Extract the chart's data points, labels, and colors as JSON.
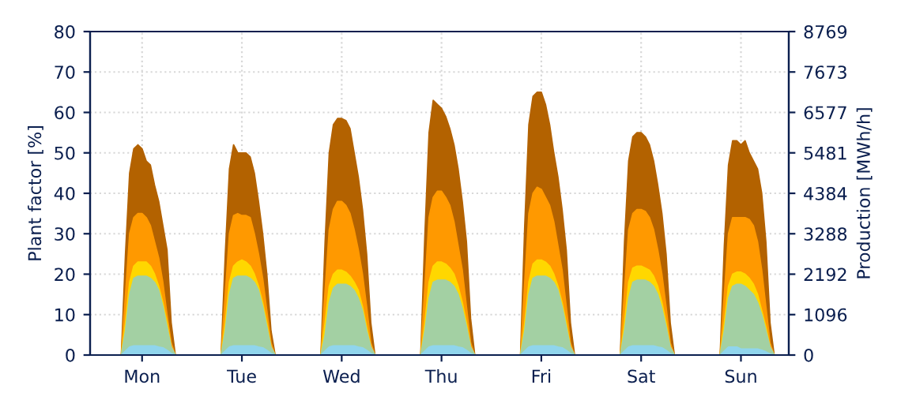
{
  "chart_data": {
    "type": "area",
    "ylabel": "Plant factor [%]",
    "y2label": "Production [MWh/h]",
    "categories": [
      null,
      null,
      null,
      null,
      null,
      null,
      null,
      null,
      null,
      null,
      null,
      null,
      "Mon",
      null,
      null,
      null,
      null,
      null,
      null,
      null,
      null,
      null,
      null,
      null,
      null,
      null,
      null,
      null,
      null,
      null,
      null,
      null,
      null,
      null,
      null,
      null,
      "Tue",
      null,
      null,
      null,
      null,
      null,
      null,
      null,
      null,
      null,
      null,
      null,
      null,
      null,
      null,
      null,
      null,
      null,
      null,
      null,
      null,
      null,
      null,
      null,
      "Wed",
      null,
      null,
      null,
      null,
      null,
      null,
      null,
      null,
      null,
      null,
      null,
      null,
      null,
      null,
      null,
      null,
      null,
      null,
      null,
      null,
      null,
      null,
      null,
      "Thu",
      null,
      null,
      null,
      null,
      null,
      null,
      null,
      null,
      null,
      null,
      null,
      null,
      null,
      null,
      null,
      null,
      null,
      null,
      null,
      null,
      null,
      null,
      null,
      "Fri",
      null,
      null,
      null,
      null,
      null,
      null,
      null,
      null,
      null,
      null,
      null,
      null,
      null,
      null,
      null,
      null,
      null,
      null,
      null,
      null,
      null,
      null,
      null,
      "Sat",
      null,
      null,
      null,
      null,
      null,
      null,
      null,
      null,
      null,
      null,
      null,
      null,
      null,
      null,
      null,
      null,
      null,
      null,
      null,
      null,
      null,
      null,
      null,
      "Sun",
      null,
      null,
      null,
      null,
      null,
      null,
      null,
      null,
      null,
      null,
      null
    ],
    "series": [
      {
        "color": "#b36200",
        "values": [
          0,
          0,
          0,
          0,
          0,
          0,
          0,
          0,
          25,
          45,
          51,
          52,
          51,
          48,
          47,
          42,
          38,
          32,
          26,
          8,
          0,
          0,
          0,
          0,
          0,
          0,
          0,
          0,
          0,
          0,
          0,
          0,
          25,
          46,
          52,
          50,
          50,
          50,
          49,
          45,
          38,
          30,
          20,
          6,
          0,
          0,
          0,
          0,
          0,
          0,
          0,
          0,
          0,
          0,
          0,
          0,
          28,
          50,
          57,
          58.5,
          58.5,
          58,
          56,
          50,
          44,
          36,
          25,
          8,
          0,
          0,
          0,
          0,
          0,
          0,
          0,
          0,
          0,
          0,
          0,
          0,
          30,
          55,
          63,
          62,
          61,
          59,
          56,
          52,
          46,
          38,
          28,
          9,
          0,
          0,
          0,
          0,
          0,
          0,
          0,
          0,
          0,
          0,
          0,
          0,
          32,
          57,
          64,
          65,
          65,
          62,
          57,
          50,
          44,
          36,
          26,
          8,
          0,
          0,
          0,
          0,
          0,
          0,
          0,
          0,
          0,
          0,
          0,
          0,
          28,
          48,
          54,
          55,
          55,
          54,
          52,
          48,
          42,
          35,
          25,
          8,
          0,
          0,
          0,
          0,
          0,
          0,
          0,
          0,
          0,
          0,
          0,
          0,
          27,
          47,
          53,
          53,
          52,
          53,
          50,
          48,
          46,
          40,
          28,
          8,
          0,
          0,
          0,
          0
        ]
      },
      {
        "color": "#ff9900",
        "values": [
          0,
          0,
          0,
          0,
          0,
          0,
          0,
          0,
          15,
          30,
          34,
          35,
          35,
          34,
          32,
          28,
          24,
          18,
          10,
          3,
          0,
          0,
          0,
          0,
          0,
          0,
          0,
          0,
          0,
          0,
          0,
          0,
          15,
          30,
          34.5,
          35,
          34.5,
          34.5,
          34,
          30,
          25,
          19,
          11,
          3,
          0,
          0,
          0,
          0,
          0,
          0,
          0,
          0,
          0,
          0,
          0,
          0,
          16,
          31,
          36,
          38,
          38,
          37,
          35,
          31,
          26,
          20,
          12,
          3,
          0,
          0,
          0,
          0,
          0,
          0,
          0,
          0,
          0,
          0,
          0,
          0,
          17,
          34,
          39,
          40.5,
          40.5,
          39,
          37,
          33,
          27,
          21,
          12,
          3,
          0,
          0,
          0,
          0,
          0,
          0,
          0,
          0,
          0,
          0,
          0,
          0,
          18,
          35,
          40,
          41.5,
          41,
          39,
          37,
          33,
          27,
          21,
          12,
          3,
          0,
          0,
          0,
          0,
          0,
          0,
          0,
          0,
          0,
          0,
          0,
          0,
          16,
          31,
          35,
          36,
          36,
          35.5,
          34,
          31,
          26,
          20,
          12,
          3,
          0,
          0,
          0,
          0,
          0,
          0,
          0,
          0,
          0,
          0,
          0,
          0,
          15,
          30,
          34,
          34,
          34,
          34,
          33.5,
          32,
          28,
          21,
          12,
          3,
          0,
          0,
          0,
          0
        ]
      },
      {
        "color": "#ffd700",
        "values": [
          0,
          0,
          0,
          0,
          0,
          0,
          0,
          0,
          8,
          18,
          22,
          23,
          23,
          23,
          22,
          20,
          17,
          13,
          8,
          2,
          0,
          0,
          0,
          0,
          0,
          0,
          0,
          0,
          0,
          0,
          0,
          0,
          8,
          18,
          22,
          23,
          23.5,
          23,
          22,
          20,
          17,
          13,
          8,
          2,
          0,
          0,
          0,
          0,
          0,
          0,
          0,
          0,
          0,
          0,
          0,
          0,
          8,
          17,
          20,
          21,
          21,
          20.5,
          19.5,
          18,
          16,
          12,
          7,
          2,
          0,
          0,
          0,
          0,
          0,
          0,
          0,
          0,
          0,
          0,
          0,
          0,
          8,
          18,
          22,
          23,
          23,
          22.5,
          21.5,
          20,
          17,
          13,
          8,
          2,
          0,
          0,
          0,
          0,
          0,
          0,
          0,
          0,
          0,
          0,
          0,
          0,
          8,
          18,
          22.5,
          23.5,
          23.5,
          23,
          22,
          20,
          17,
          13,
          8,
          2,
          0,
          0,
          0,
          0,
          0,
          0,
          0,
          0,
          0,
          0,
          0,
          0,
          8,
          18,
          21.5,
          22,
          22,
          21.5,
          21,
          19.5,
          17,
          13,
          8,
          2,
          0,
          0,
          0,
          0,
          0,
          0,
          0,
          0,
          0,
          0,
          0,
          0,
          8,
          17,
          20,
          20.5,
          20.5,
          20,
          19,
          17.5,
          15,
          11,
          7,
          2,
          0,
          0,
          0,
          0
        ]
      },
      {
        "color": "#a3d0a3",
        "values": [
          0,
          0,
          0,
          0,
          0,
          0,
          0,
          0,
          6,
          15,
          19,
          19.5,
          19.5,
          19.5,
          19,
          18,
          16,
          12,
          7,
          2,
          0,
          0,
          0,
          0,
          0,
          0,
          0,
          0,
          0,
          0,
          0,
          0,
          6,
          15,
          19,
          19.5,
          19.5,
          19.5,
          19,
          18,
          16,
          12,
          7,
          2,
          0,
          0,
          0,
          0,
          0,
          0,
          0,
          0,
          0,
          0,
          0,
          0,
          5,
          13,
          16.5,
          17.5,
          17.5,
          17.5,
          17,
          16,
          14,
          11,
          6,
          2,
          0,
          0,
          0,
          0,
          0,
          0,
          0,
          0,
          0,
          0,
          0,
          0,
          6,
          14,
          18,
          18.5,
          18.5,
          18.5,
          18,
          17,
          15,
          11.5,
          7,
          2,
          0,
          0,
          0,
          0,
          0,
          0,
          0,
          0,
          0,
          0,
          0,
          0,
          6,
          15,
          19,
          19.5,
          19.5,
          19.5,
          19,
          18,
          16,
          12,
          7,
          2,
          0,
          0,
          0,
          0,
          0,
          0,
          0,
          0,
          0,
          0,
          0,
          0,
          6,
          14,
          18,
          18.5,
          18.5,
          18.5,
          18,
          17,
          15,
          11.5,
          7,
          2,
          0,
          0,
          0,
          0,
          0,
          0,
          0,
          0,
          0,
          0,
          0,
          0,
          6,
          14,
          17,
          17.5,
          17.5,
          17,
          16,
          15,
          13,
          10,
          6,
          2,
          0,
          0,
          0,
          0
        ]
      },
      {
        "color": "#90d5ec",
        "values": [
          0,
          0,
          0,
          0,
          0,
          0,
          0,
          0,
          1,
          2,
          2.3,
          2.3,
          2.3,
          2.3,
          2.3,
          2.3,
          2,
          1.8,
          1.2,
          0.4,
          0,
          0,
          0,
          0,
          0,
          0,
          0,
          0,
          0,
          0,
          0,
          0,
          1,
          2,
          2.3,
          2.3,
          2.3,
          2.3,
          2.3,
          2.3,
          2,
          1.8,
          1.2,
          0.4,
          0,
          0,
          0,
          0,
          0,
          0,
          0,
          0,
          0,
          0,
          0,
          0,
          1,
          2,
          2.3,
          2.3,
          2.3,
          2.3,
          2.3,
          2.3,
          2,
          1.8,
          1.2,
          0.4,
          0,
          0,
          0,
          0,
          0,
          0,
          0,
          0,
          0,
          0,
          0,
          0,
          1,
          2,
          2.3,
          2.3,
          2.3,
          2.3,
          2.3,
          2.3,
          2,
          1.8,
          1.2,
          0.4,
          0,
          0,
          0,
          0,
          0,
          0,
          0,
          0,
          0,
          0,
          0,
          0,
          1,
          2,
          2.3,
          2.3,
          2.3,
          2.3,
          2.3,
          2.3,
          2,
          1.8,
          1.2,
          0.4,
          0,
          0,
          0,
          0,
          0,
          0,
          0,
          0,
          0,
          0,
          0,
          0,
          1,
          2,
          2.3,
          2.3,
          2.3,
          2.3,
          2.3,
          2.3,
          2,
          1.8,
          1.2,
          0.4,
          0,
          0,
          0,
          0,
          0,
          0,
          0,
          0,
          0,
          0,
          0,
          0,
          1,
          2,
          2,
          2,
          1.5,
          1.5,
          1.5,
          1.5,
          1.5,
          1.2,
          0.8,
          0.3,
          0,
          0,
          0,
          0
        ]
      }
    ],
    "ylim": [
      0,
      80
    ],
    "yticks": [
      0,
      10,
      20,
      30,
      40,
      50,
      60,
      70,
      80
    ],
    "y2lim": [
      0,
      8769
    ],
    "y2ticks": [
      0,
      1096,
      2192,
      3288,
      4384,
      5481,
      6577,
      7673,
      8769
    ],
    "grid": true
  }
}
